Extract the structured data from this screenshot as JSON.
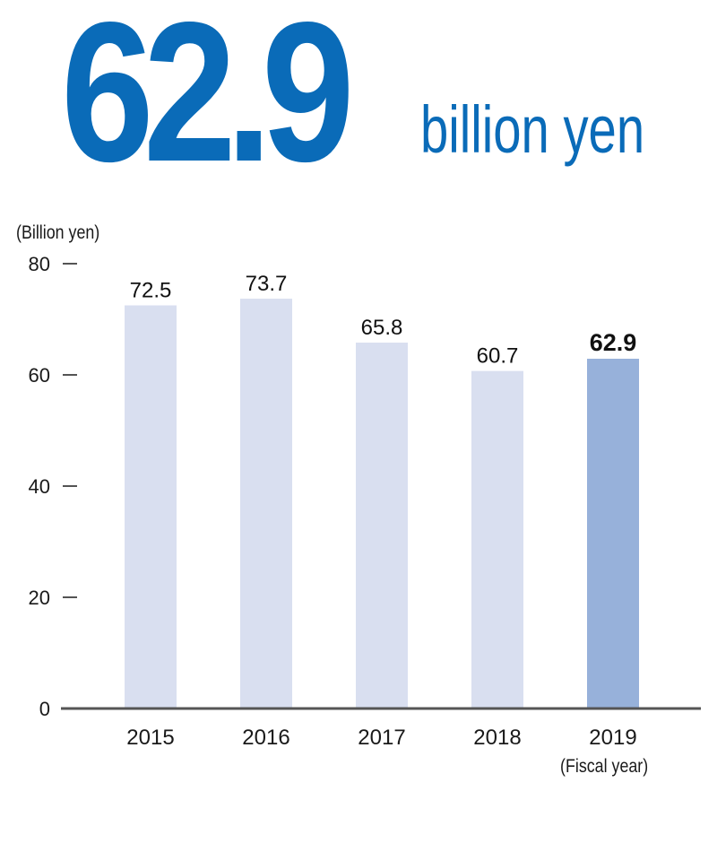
{
  "headline": {
    "value": "62.9",
    "unit": "billion yen"
  },
  "colors": {
    "accent": "#0a6bb8",
    "bar": "#d9dff0",
    "bar_highlight": "#97b1da",
    "axis": "#555555",
    "text": "#1a1a1a"
  },
  "chart_data": {
    "type": "bar",
    "ylabel": "(Billion yen)",
    "xlabel": "(Fiscal year)",
    "categories": [
      "2015",
      "2016",
      "2017",
      "2018",
      "2019"
    ],
    "values": [
      72.5,
      73.7,
      65.8,
      60.7,
      62.9
    ],
    "value_labels": [
      "72.5",
      "73.7",
      "65.8",
      "60.7",
      "62.9"
    ],
    "highlight_index": 4,
    "ylim": [
      0,
      80
    ],
    "yticks": [
      0,
      20,
      40,
      60,
      80
    ],
    "grid": false,
    "legend": "none"
  }
}
